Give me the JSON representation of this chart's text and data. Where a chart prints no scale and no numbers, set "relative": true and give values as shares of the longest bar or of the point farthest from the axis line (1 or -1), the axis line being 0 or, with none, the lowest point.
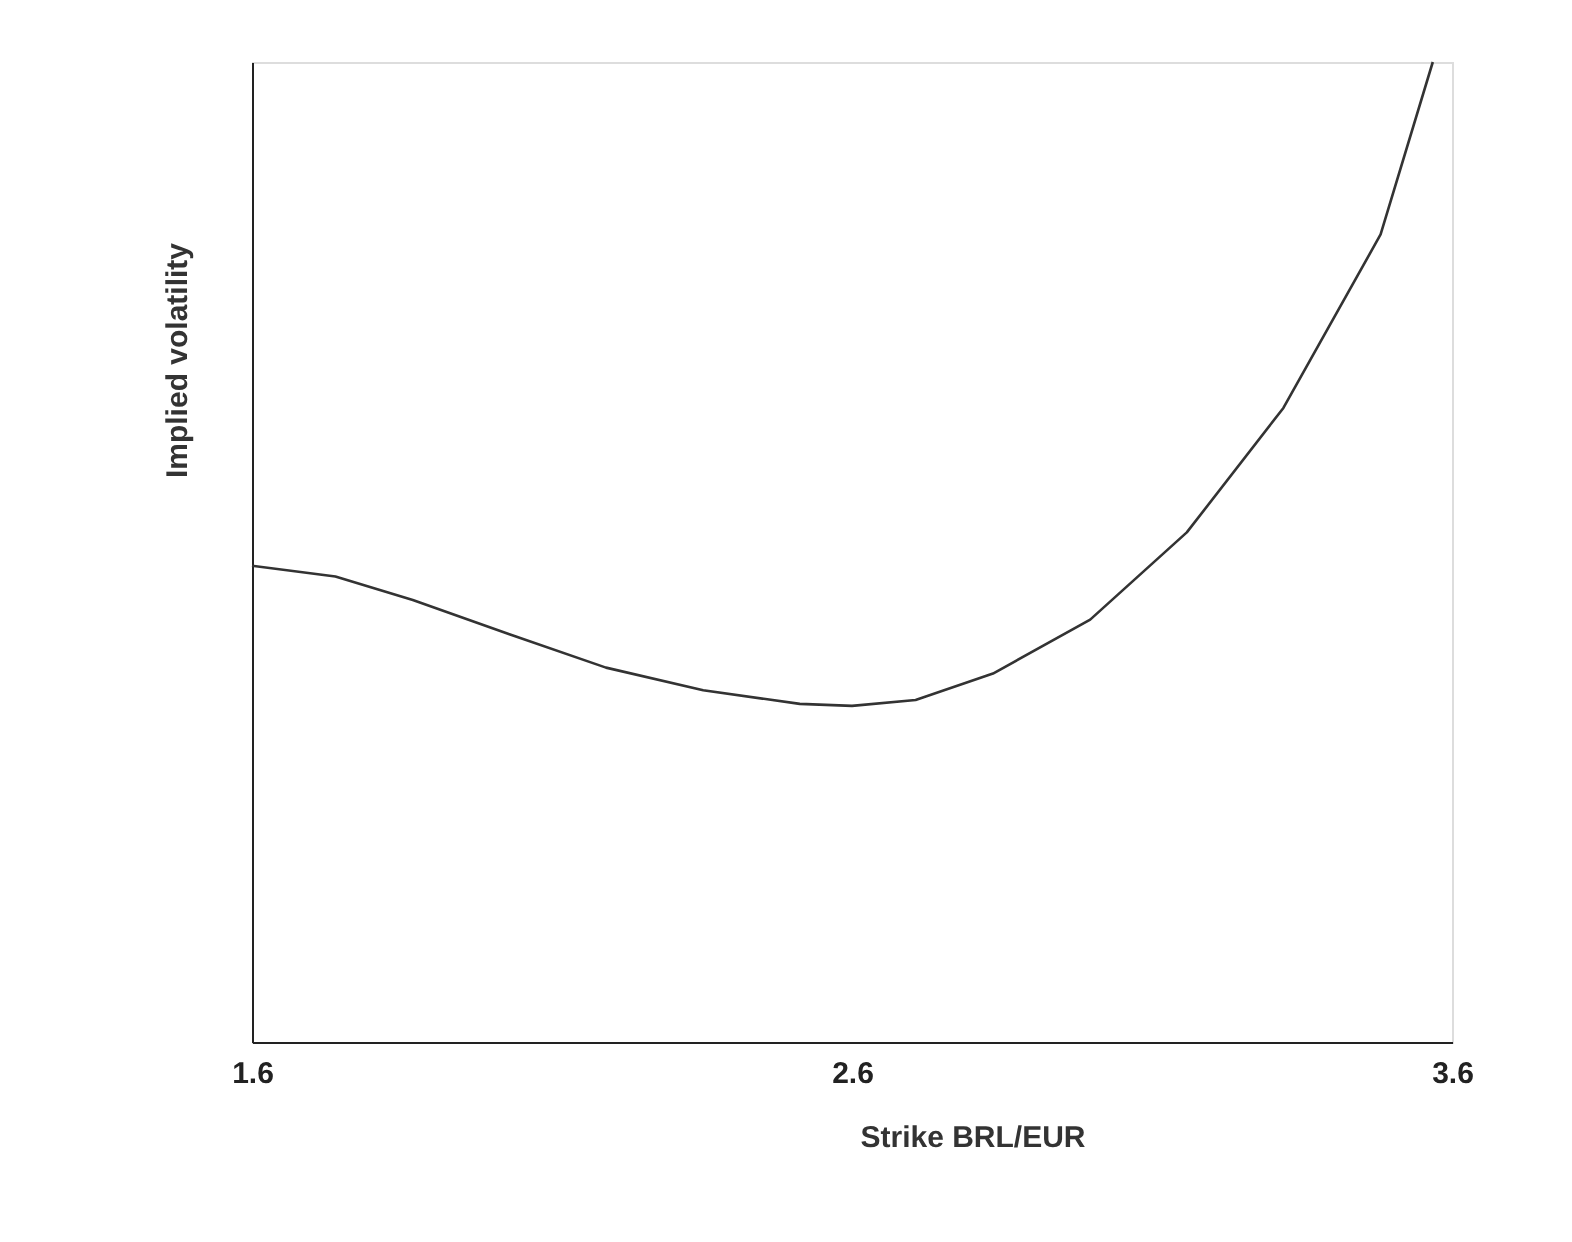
{
  "chart_data": {
    "type": "line",
    "relative": true,
    "xlabel": "Strike BRL/EUR",
    "ylabel": "Implied volatility",
    "x": [
      1.6,
      1.739,
      1.868,
      2.029,
      2.19,
      2.352,
      2.513,
      2.6,
      2.706,
      2.835,
      2.997,
      3.158,
      3.319,
      3.481,
      3.568
    ],
    "series": [
      {
        "color": "#333333",
        "values": [
          0.486,
          0.475,
          0.451,
          0.416,
          0.382,
          0.359,
          0.345,
          0.343,
          0.349,
          0.376,
          0.431,
          0.52,
          0.647,
          0.824,
          1.0
        ]
      }
    ],
    "xlim": [
      1.6,
      3.6
    ],
    "xticks": [
      1.6,
      2.6,
      3.6
    ],
    "grid": false,
    "marker": "none",
    "line_style": "solid"
  }
}
